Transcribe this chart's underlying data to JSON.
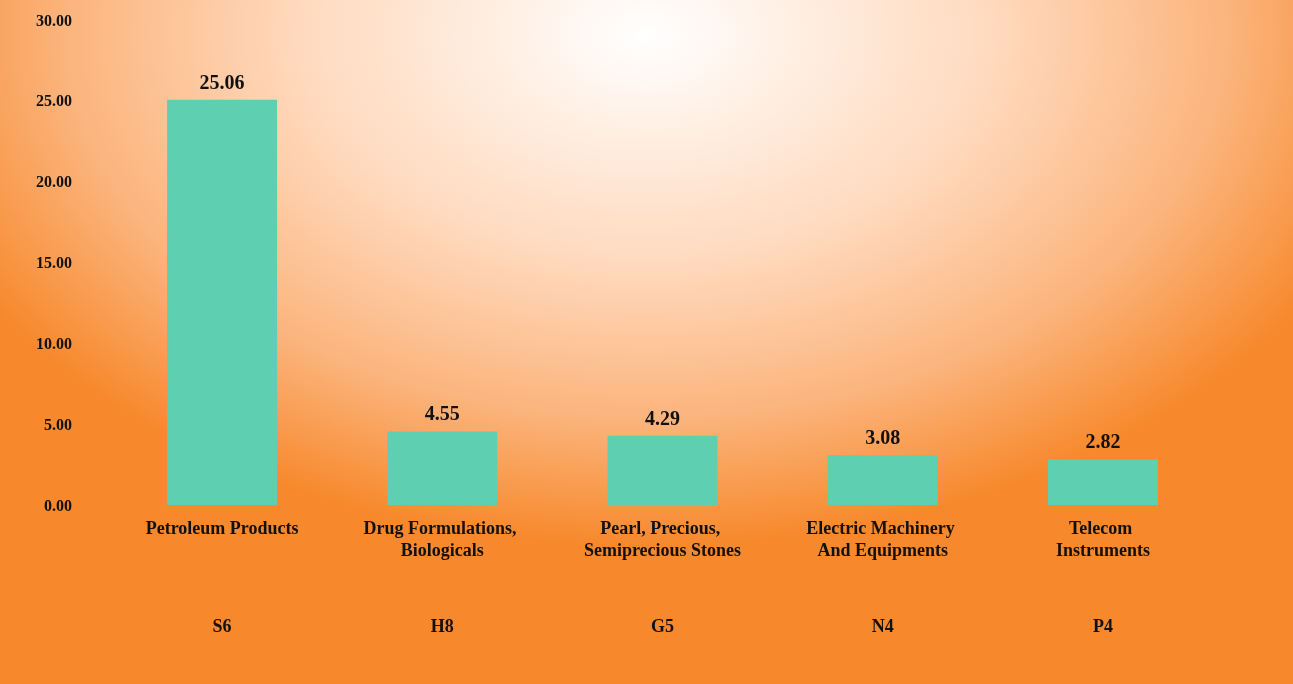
{
  "chart_data": {
    "type": "bar",
    "categories": [
      "Petroleum Products",
      "Drug Formulations, Biologicals",
      "Pearl, Precious, Semiprecious Stones",
      "Electric Machinery And Equipments",
      "Telecom Instruments"
    ],
    "values": [
      25.06,
      4.55,
      4.29,
      3.08,
      2.82
    ],
    "color": "#5ecfb1",
    "ylim": [
      0,
      30
    ],
    "yticks": [
      {
        "value": 0,
        "label": "0.00"
      },
      {
        "value": 5,
        "label": "5.00"
      },
      {
        "value": 10,
        "label": "10.00"
      },
      {
        "value": 15,
        "label": "15.00"
      },
      {
        "value": 20,
        "label": "20.00"
      },
      {
        "value": 25,
        "label": "25.00"
      },
      {
        "value": 30,
        "label": "30.00"
      }
    ],
    "data_labels": true,
    "grid": false,
    "annotations": [
      "S6",
      "H8",
      "G5",
      "N4",
      "P4"
    ]
  }
}
